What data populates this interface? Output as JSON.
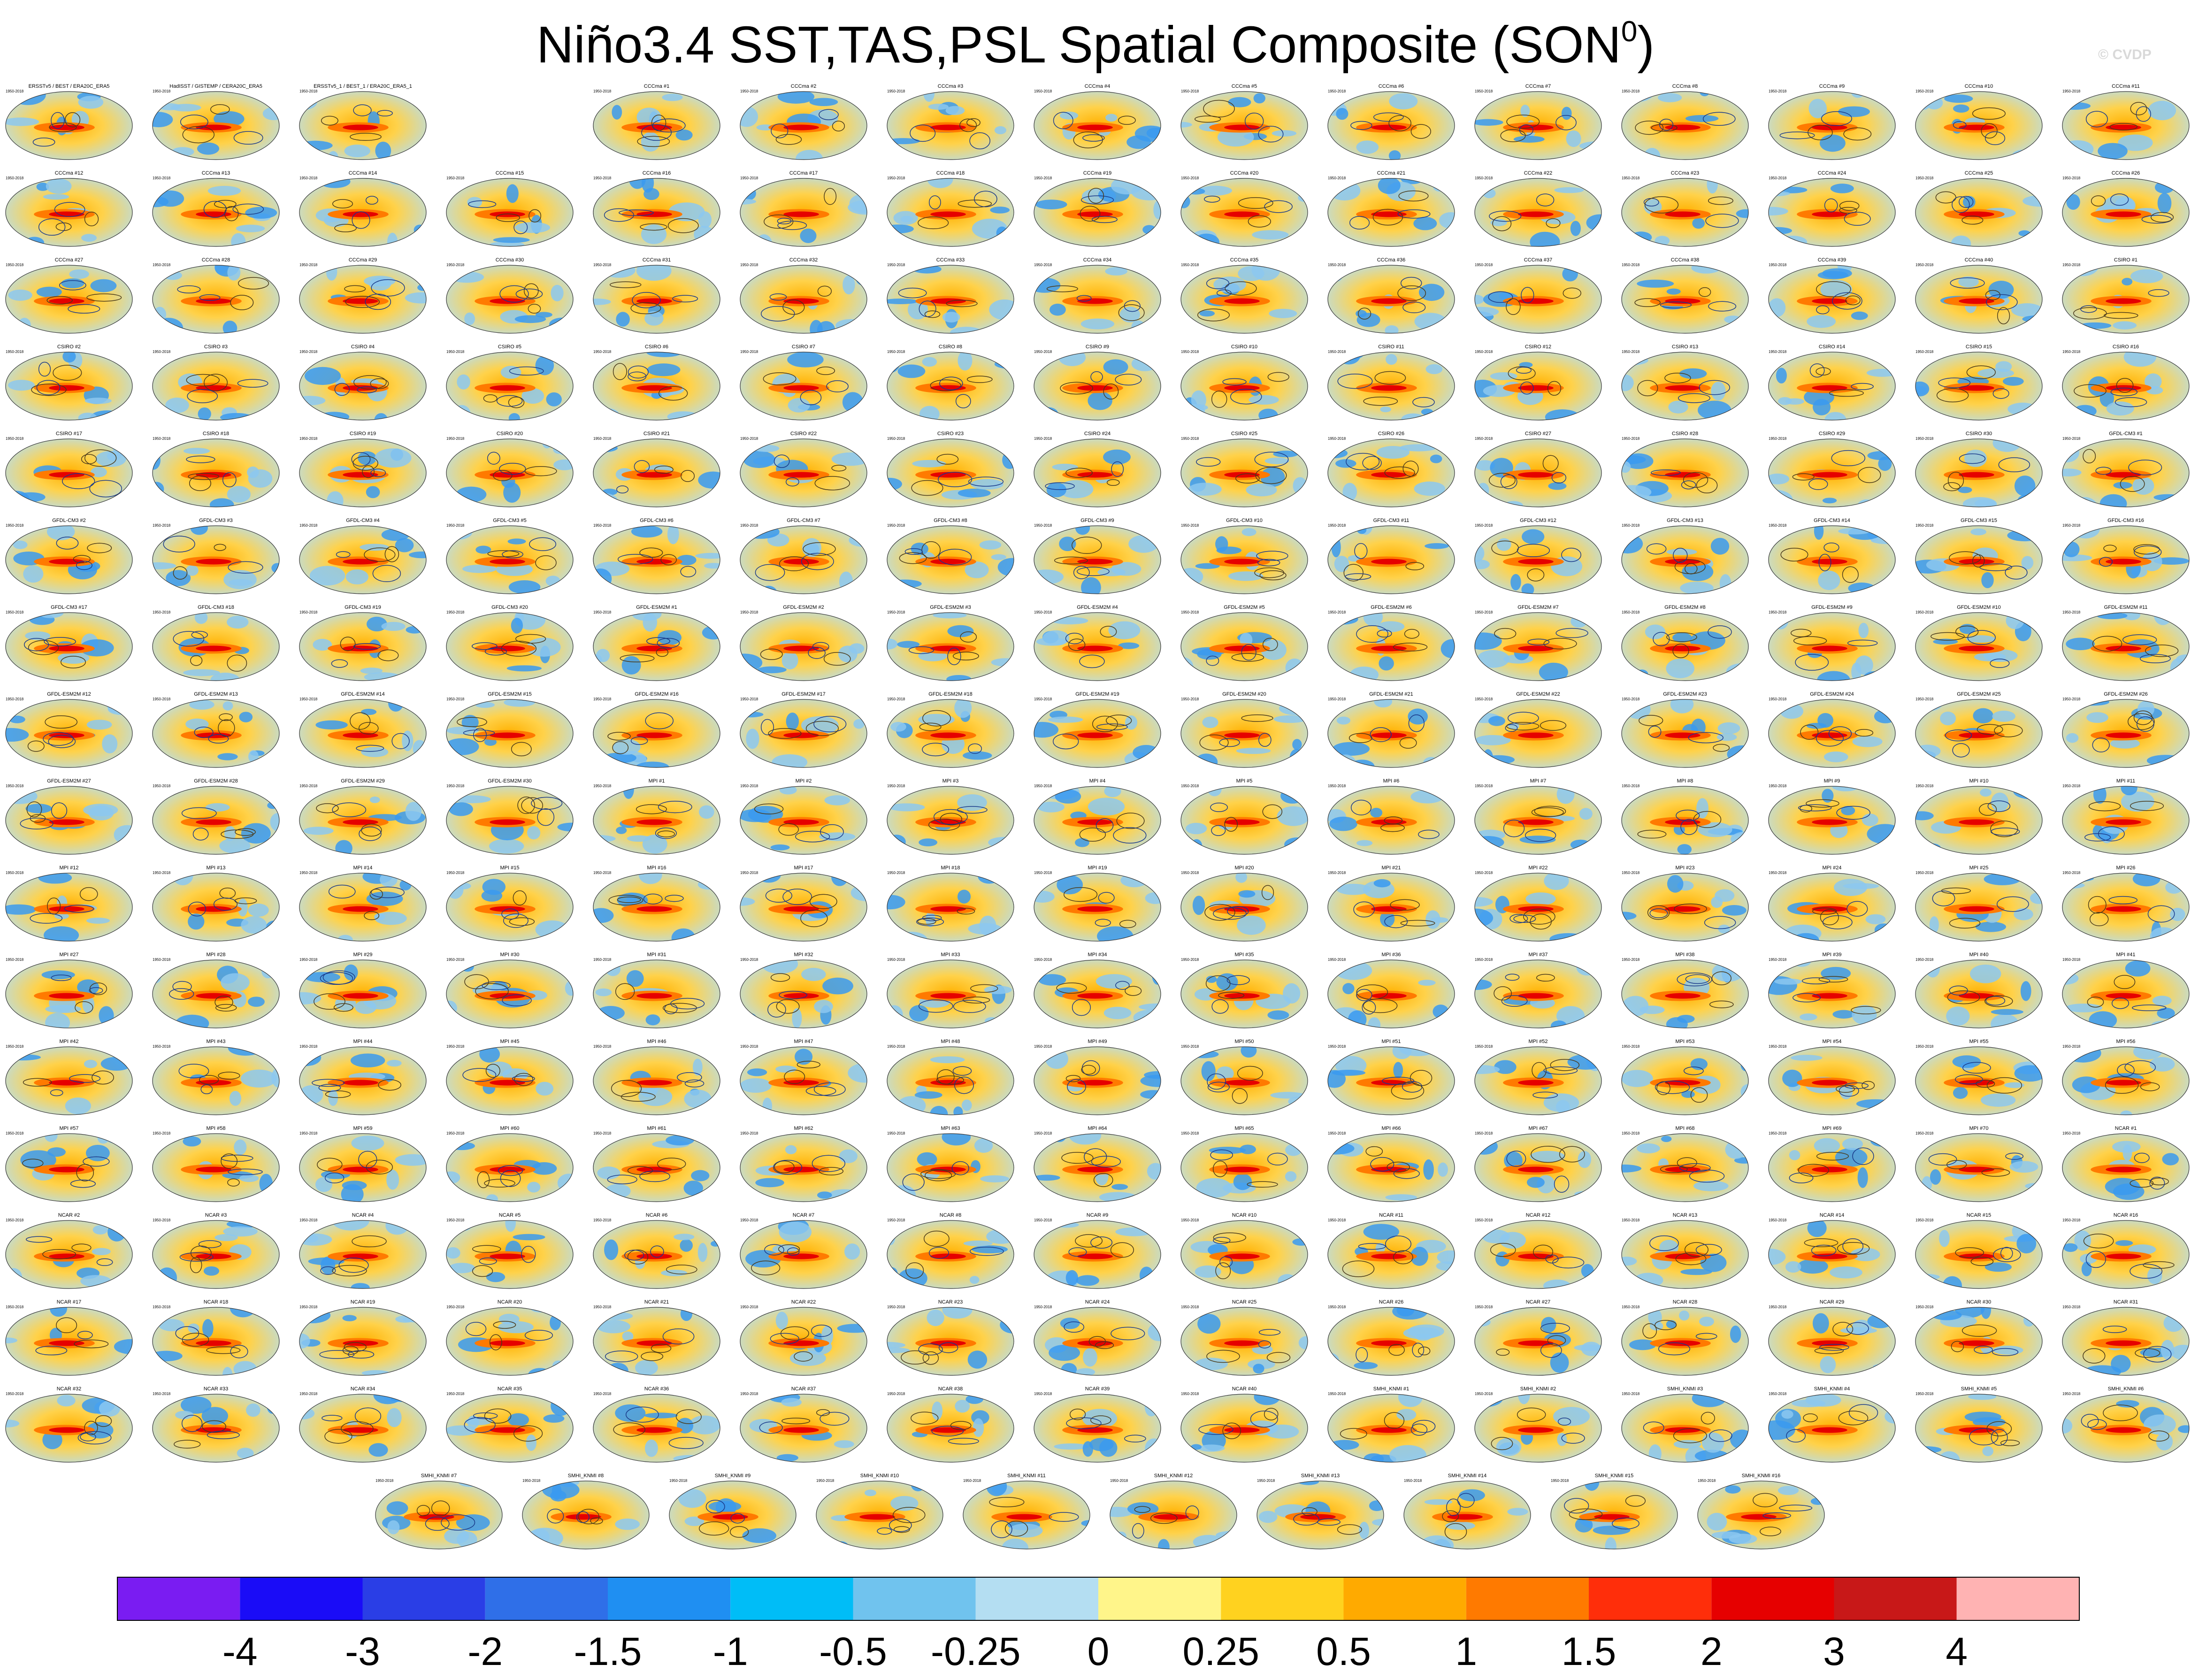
{
  "title": "Niño3.4 SST,TAS,PSL Spatial Composite (SON",
  "title_superscript": "0",
  "title_suffix": ")",
  "watermark": "© CVDP",
  "panel_rows": [
    [
      "ERSSTv5 / BEST / ERA20C_ERA5",
      "HadISST / GISTEMP / CERA20C_ERA5",
      "ERSSTv5_1 / BEST_1 / ERA20C_ERA5_1",
      "",
      "CCCma #1",
      "CCCma #2",
      "CCCma #3",
      "CCCma #4",
      "CCCma #5",
      "CCCma #6",
      "CCCma #7",
      "CCCma #8",
      "CCCma #9",
      "CCCma #10",
      "CCCma #11"
    ],
    [
      "CCCma #12",
      "CCCma #13",
      "CCCma #14",
      "CCCma #15",
      "CCCma #16",
      "CCCma #17",
      "CCCma #18",
      "CCCma #19",
      "CCCma #20",
      "CCCma #21",
      "CCCma #22",
      "CCCma #23",
      "CCCma #24",
      "CCCma #25",
      "CCCma #26"
    ],
    [
      "CCCma #27",
      "CCCma #28",
      "CCCma #29",
      "CCCma #30",
      "CCCma #31",
      "CCCma #32",
      "CCCma #33",
      "CCCma #34",
      "CCCma #35",
      "CCCma #36",
      "CCCma #37",
      "CCCma #38",
      "CCCma #39",
      "CCCma #40",
      "CSIRO #1"
    ],
    [
      "CSIRO #2",
      "CSIRO #3",
      "CSIRO #4",
      "CSIRO #5",
      "CSIRO #6",
      "CSIRO #7",
      "CSIRO #8",
      "CSIRO #9",
      "CSIRO #10",
      "CSIRO #11",
      "CSIRO #12",
      "CSIRO #13",
      "CSIRO #14",
      "CSIRO #15",
      "CSIRO #16"
    ],
    [
      "CSIRO #17",
      "CSIRO #18",
      "CSIRO #19",
      "CSIRO #20",
      "CSIRO #21",
      "CSIRO #22",
      "CSIRO #23",
      "CSIRO #24",
      "CSIRO #25",
      "CSIRO #26",
      "CSIRO #27",
      "CSIRO #28",
      "CSIRO #29",
      "CSIRO #30",
      "GFDL-CM3 #1"
    ],
    [
      "GFDL-CM3 #2",
      "GFDL-CM3 #3",
      "GFDL-CM3 #4",
      "GFDL-CM3 #5",
      "GFDL-CM3 #6",
      "GFDL-CM3 #7",
      "GFDL-CM3 #8",
      "GFDL-CM3 #9",
      "GFDL-CM3 #10",
      "GFDL-CM3 #11",
      "GFDL-CM3 #12",
      "GFDL-CM3 #13",
      "GFDL-CM3 #14",
      "GFDL-CM3 #15",
      "GFDL-CM3 #16"
    ],
    [
      "GFDL-CM3 #17",
      "GFDL-CM3 #18",
      "GFDL-CM3 #19",
      "GFDL-CM3 #20",
      "GFDL-ESM2M #1",
      "GFDL-ESM2M #2",
      "GFDL-ESM2M #3",
      "GFDL-ESM2M #4",
      "GFDL-ESM2M #5",
      "GFDL-ESM2M #6",
      "GFDL-ESM2M #7",
      "GFDL-ESM2M #8",
      "GFDL-ESM2M #9",
      "GFDL-ESM2M #10",
      "GFDL-ESM2M #11"
    ],
    [
      "GFDL-ESM2M #12",
      "GFDL-ESM2M #13",
      "GFDL-ESM2M #14",
      "GFDL-ESM2M #15",
      "GFDL-ESM2M #16",
      "GFDL-ESM2M #17",
      "GFDL-ESM2M #18",
      "GFDL-ESM2M #19",
      "GFDL-ESM2M #20",
      "GFDL-ESM2M #21",
      "GFDL-ESM2M #22",
      "GFDL-ESM2M #23",
      "GFDL-ESM2M #24",
      "GFDL-ESM2M #25",
      "GFDL-ESM2M #26"
    ],
    [
      "GFDL-ESM2M #27",
      "GFDL-ESM2M #28",
      "GFDL-ESM2M #29",
      "GFDL-ESM2M #30",
      "MPI #1",
      "MPI #2",
      "MPI #3",
      "MPI #4",
      "MPI #5",
      "MPI #6",
      "MPI #7",
      "MPI #8",
      "MPI #9",
      "MPI #10",
      "MPI #11"
    ],
    [
      "MPI #12",
      "MPI #13",
      "MPI #14",
      "MPI #15",
      "MPI #16",
      "MPI #17",
      "MPI #18",
      "MPI #19",
      "MPI #20",
      "MPI #21",
      "MPI #22",
      "MPI #23",
      "MPI #24",
      "MPI #25",
      "MPI #26"
    ],
    [
      "MPI #27",
      "MPI #28",
      "MPI #29",
      "MPI #30",
      "MPI #31",
      "MPI #32",
      "MPI #33",
      "MPI #34",
      "MPI #35",
      "MPI #36",
      "MPI #37",
      "MPI #38",
      "MPI #39",
      "MPI #40",
      "MPI #41"
    ],
    [
      "MPI #42",
      "MPI #43",
      "MPI #44",
      "MPI #45",
      "MPI #46",
      "MPI #47",
      "MPI #48",
      "MPI #49",
      "MPI #50",
      "MPI #51",
      "MPI #52",
      "MPI #53",
      "MPI #54",
      "MPI #55",
      "MPI #56"
    ],
    [
      "MPI #57",
      "MPI #58",
      "MPI #59",
      "MPI #60",
      "MPI #61",
      "MPI #62",
      "MPI #63",
      "MPI #64",
      "MPI #65",
      "MPI #66",
      "MPI #67",
      "MPI #68",
      "MPI #69",
      "MPI #70",
      "NCAR #1"
    ],
    [
      "NCAR #2",
      "NCAR #3",
      "NCAR #4",
      "NCAR #5",
      "NCAR #6",
      "NCAR #7",
      "NCAR #8",
      "NCAR #9",
      "NCAR #10",
      "NCAR #11",
      "NCAR #12",
      "NCAR #13",
      "NCAR #14",
      "NCAR #15",
      "NCAR #16"
    ],
    [
      "NCAR #17",
      "NCAR #18",
      "NCAR #19",
      "NCAR #20",
      "NCAR #21",
      "NCAR #22",
      "NCAR #23",
      "NCAR #24",
      "NCAR #25",
      "NCAR #26",
      "NCAR #27",
      "NCAR #28",
      "NCAR #29",
      "NCAR #30",
      "NCAR #31"
    ],
    [
      "NCAR #32",
      "NCAR #33",
      "NCAR #34",
      "NCAR #35",
      "NCAR #36",
      "NCAR #37",
      "NCAR #38",
      "NCAR #39",
      "NCAR #40",
      "SMHI_KNMI #1",
      "SMHI_KNMI #2",
      "SMHI_KNMI #3",
      "SMHI_KNMI #4",
      "SMHI_KNMI #5",
      "SMHI_KNMI #6"
    ]
  ],
  "panel_last_row": [
    "SMHI_KNMI #7",
    "SMHI_KNMI #8",
    "SMHI_KNMI #9",
    "SMHI_KNMI #10",
    "SMHI_KNMI #11",
    "SMHI_KNMI #12",
    "SMHI_KNMI #13",
    "SMHI_KNMI #14",
    "SMHI_KNMI #15",
    "SMHI_KNMI #16"
  ],
  "panel_period": "1950-2018",
  "colorbar": {
    "colors": [
      "#7a1cf2",
      "#1a0cf7",
      "#2a3ee6",
      "#2f6fe8",
      "#1f8ff2",
      "#00bdf7",
      "#70c3ee",
      "#b4def2",
      "#fff58a",
      "#ffd21f",
      "#ffaa00",
      "#ff7a00",
      "#ff2e0a",
      "#e60000",
      "#c81818",
      "#ffb3b3"
    ],
    "labels": [
      "-4",
      "-3",
      "-2",
      "-1.5",
      "-1",
      "-0.5",
      "-0.25",
      "0",
      "0.25",
      "0.5",
      "1",
      "1.5",
      "2",
      "3",
      "4"
    ]
  }
}
